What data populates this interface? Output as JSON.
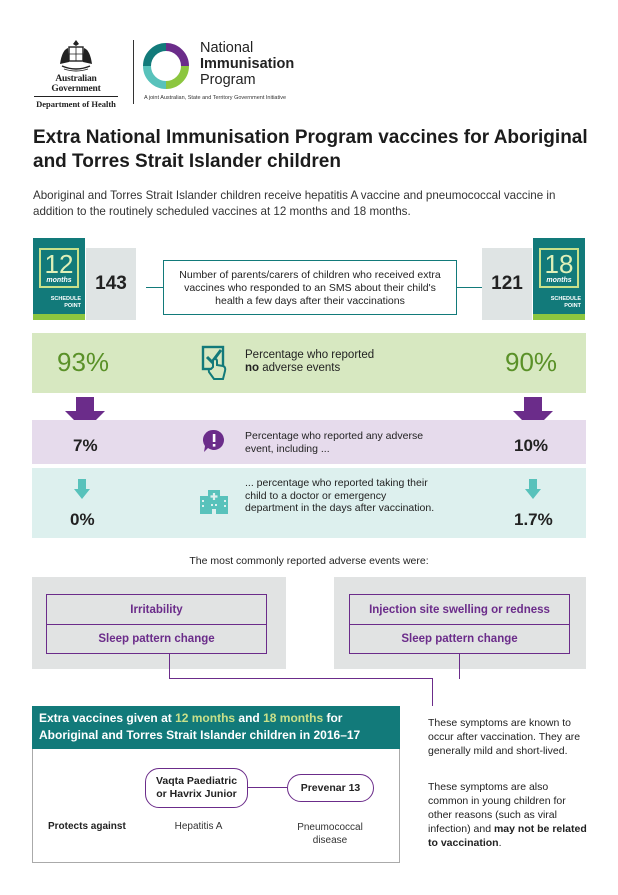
{
  "header": {
    "gov_name": "Australian Government",
    "gov_dept": "Department of Health",
    "program_line1": "National",
    "program_line2": "Immunisation",
    "program_line3": "Program",
    "program_tagline": "A joint Australian, State and Territory Government Initiative"
  },
  "title": "Extra National Immunisation Program vaccines for Aboriginal and Torres Strait Islander children",
  "intro": "Aboriginal and Torres Strait Islander children receive hepatitis A vaccine and pneumococcal vaccine in addition to the routinely scheduled vaccines at 12 months and 18 months.",
  "schedule": {
    "left": {
      "number": "12",
      "unit": "months",
      "label_line1": "SCHEDULE",
      "label_line2": "POINT",
      "count": "143"
    },
    "right": {
      "number": "18",
      "unit": "months",
      "label_line1": "SCHEDULE",
      "label_line2": "POINT",
      "count": "121"
    },
    "sms_text": "Number of parents/carers of children who received extra vaccines who responded to an SMS about their child's health a few days after their vaccinations"
  },
  "no_adverse": {
    "left_pct": "93%",
    "right_pct": "90%",
    "text_line1": "Percentage who reported",
    "text_bold": "no",
    "text_rest": " adverse events"
  },
  "any_adverse": {
    "left_pct": "7%",
    "right_pct": "10%",
    "text": "Percentage who reported any adverse event, including ..."
  },
  "doctor_visit": {
    "left_pct": "0%",
    "right_pct": "1.7%",
    "text": "... percentage who reported taking their child to a doctor or emergency department in the days after vaccination."
  },
  "common_events": {
    "title": "The most commonly reported adverse events were:",
    "left": [
      "Irritability",
      "Sleep pattern change"
    ],
    "right": [
      "Injection site swelling or redness",
      "Sleep pattern change"
    ]
  },
  "extra_vaccines": {
    "head_prefix": "Extra vaccines given at ",
    "head_12": "12 months",
    "head_and": " and ",
    "head_18": "18 months",
    "head_for": " for",
    "head_line2": "Aboriginal and Torres Strait Islander children in 2016–17",
    "vaccine1_line1": "Vaqta Paediatric",
    "vaccine1_line2": "or Havrix Junior",
    "vaccine2": "Prevenar 13",
    "protects_label": "Protects against",
    "disease1": "Hepatitis A",
    "disease2_line1": "Pneumococcal",
    "disease2_line2": "disease"
  },
  "notes": {
    "note1": "These symptoms are known to occur after vaccination. They are generally mild and short-lived.",
    "note2_plain": "These symptoms are also common in young children for other reasons (such as viral infection) and ",
    "note2_bold": "may not be related to vaccination",
    "note2_end": "."
  },
  "colors": {
    "teal": "#127a7a",
    "green": "#5a9128",
    "lime": "#8cc63f",
    "purple": "#6b2c8a",
    "green_band": "#d7e8c1",
    "purple_band": "#e6dbec",
    "teal_band": "#ddf0ee",
    "teal_icon": "#58c2bb"
  },
  "icons": [
    "coat-of-arms-icon",
    "program-ring-icon",
    "checklist-hand-icon",
    "alert-icon",
    "hospital-icon",
    "down-arrow-icon"
  ]
}
